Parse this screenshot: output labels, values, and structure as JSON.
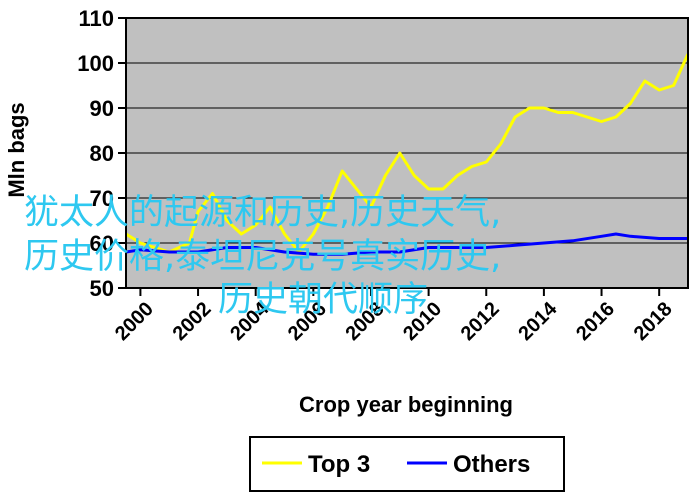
{
  "chart_data": {
    "type": "line",
    "xlabel": "Crop year beginning",
    "ylabel": "Mln bags",
    "xlim": [
      1999.5,
      2019.0
    ],
    "ylim": [
      50,
      110
    ],
    "y_ticks": [
      "110",
      "100",
      "90",
      "80",
      "70",
      "60",
      "50"
    ],
    "x_ticks": [
      "2000",
      "2002",
      "2004",
      "2006",
      "2008",
      "2010",
      "2012",
      "2014",
      "2016",
      "2018"
    ],
    "grid": true,
    "legend_position": "bottom-center",
    "background": "#c0c0c0",
    "series": [
      {
        "name": "Top 3",
        "color": "#ffff00",
        "x": [
          1999.5,
          2000,
          2001,
          2001.7,
          2002,
          2002.5,
          2003,
          2003.5,
          2004,
          2004.5,
          2005,
          2005.5,
          2006,
          2006.5,
          2007,
          2007.5,
          2008,
          2008.5,
          2009,
          2009.5,
          2010,
          2010.5,
          2011,
          2011.5,
          2012,
          2012.5,
          2013,
          2013.5,
          2014,
          2014.5,
          2015,
          2015.5,
          2016,
          2016.5,
          2017,
          2017.5,
          2018,
          2018.5,
          2019
        ],
        "values": [
          62,
          60,
          58,
          60,
          67,
          71,
          65,
          62,
          64,
          68,
          62,
          58,
          62,
          68,
          76,
          72,
          68,
          75,
          80,
          75,
          72,
          72,
          75,
          77,
          78,
          82,
          88,
          90,
          90,
          89,
          89,
          88,
          87,
          88,
          91,
          96,
          94,
          95,
          102
        ]
      },
      {
        "name": "Others",
        "color": "#0000ff",
        "x": [
          1999.5,
          2000,
          2001,
          2002,
          2003,
          2004,
          2005,
          2006,
          2007,
          2008,
          2009,
          2010,
          2011,
          2012,
          2013,
          2014,
          2015,
          2016,
          2016.5,
          2017,
          2018,
          2019
        ],
        "values": [
          58,
          58.5,
          58,
          58,
          59,
          59,
          58,
          57.5,
          57.5,
          58,
          58,
          59,
          59,
          59,
          59.5,
          60,
          60.5,
          61.5,
          62,
          61.5,
          61,
          61
        ]
      }
    ]
  },
  "overlay_text": {
    "line1": "犹太人的起源和历史,历史天气,",
    "line2": "历史价格,泰坦尼克号真实历史,",
    "line3": "历史朝代顺序"
  }
}
